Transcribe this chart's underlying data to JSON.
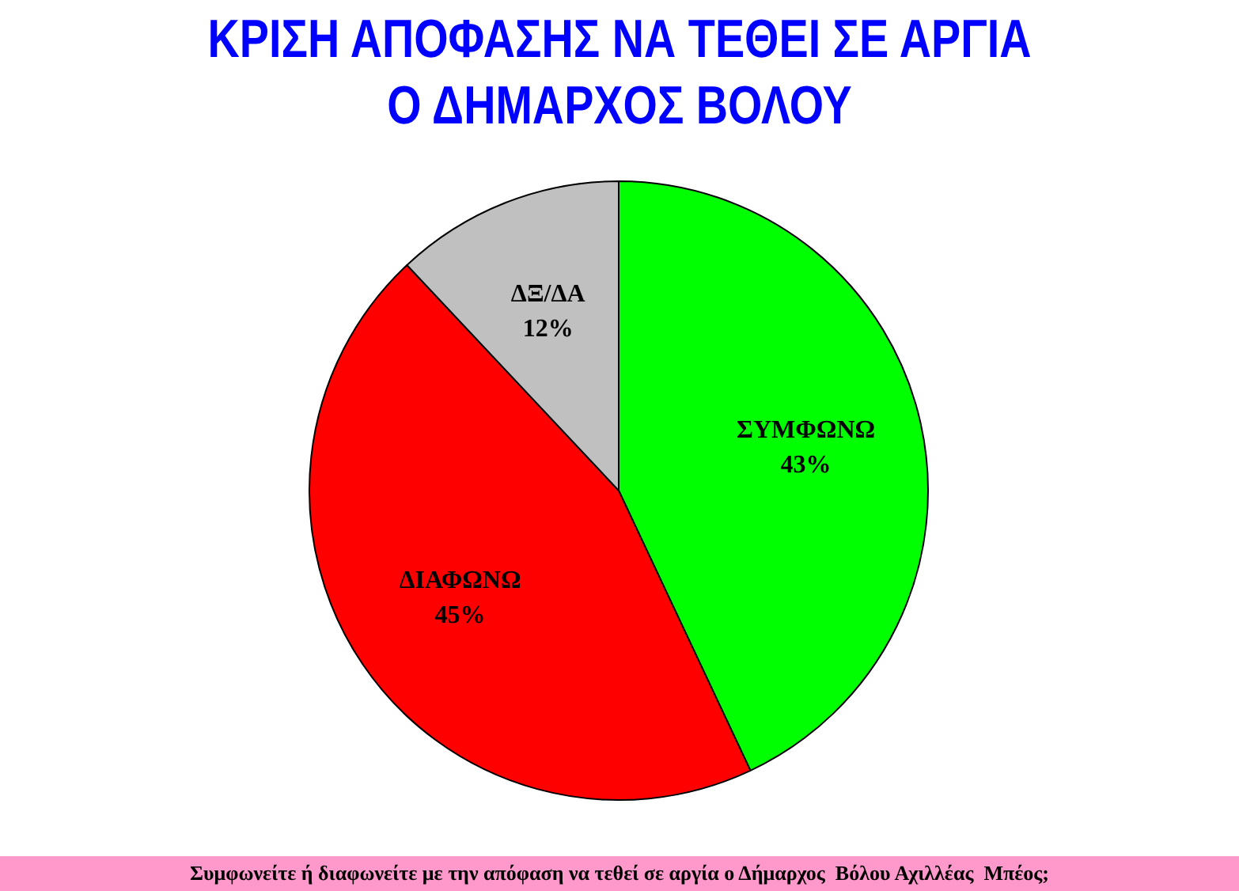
{
  "chart_data": {
    "type": "pie",
    "title": "ΚΡΙΣΗ ΑΠΟΦΑΣΗΣ ΝΑ ΤΕΘΕΙ ΣΕ ΑΡΓΙΑ\nΟ ΔΗΜΑΡΧΟΣ ΒΟΛΟΥ",
    "categories": [
      "ΣΥΜΦΩΝΩ",
      "ΔΙΑΦΩΝΩ",
      "ΔΞ/ΔΑ"
    ],
    "values": [
      43,
      45,
      12
    ],
    "colors": [
      "#00ff00",
      "#ff0000",
      "#c0c0c0"
    ],
    "value_labels": [
      "43%",
      "45%",
      "12%"
    ],
    "legend": false,
    "annotations": [
      "Συμφωνείτε ή διαφωνείτε με την απόφαση να τεθεί σε αργία ο Δήμαρχος  Βόλου Αχιλλέας  Μπέος;"
    ]
  }
}
